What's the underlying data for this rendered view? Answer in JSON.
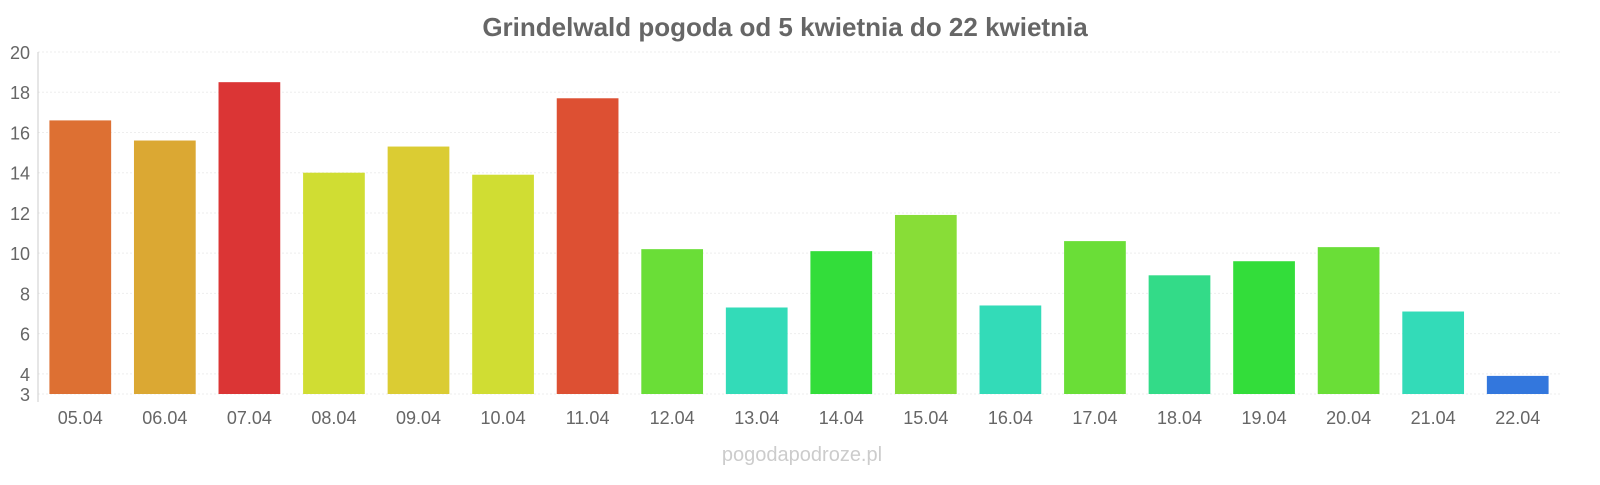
{
  "chart_data": {
    "type": "bar",
    "title": "Grindelwald pogoda od 5 kwietnia do 22 kwietnia",
    "xlabel": "",
    "ylabel": "",
    "ylim": [
      3,
      20
    ],
    "yticks": [
      3,
      4,
      6,
      8,
      10,
      12,
      14,
      16,
      18,
      20
    ],
    "grid": true,
    "categories": [
      "05.04",
      "06.04",
      "07.04",
      "08.04",
      "09.04",
      "10.04",
      "11.04",
      "12.04",
      "13.04",
      "14.04",
      "15.04",
      "16.04",
      "17.04",
      "18.04",
      "19.04",
      "20.04",
      "21.04",
      "22.04"
    ],
    "values": [
      16.6,
      15.6,
      18.5,
      14.0,
      15.3,
      13.9,
      17.7,
      10.2,
      7.3,
      10.1,
      11.9,
      7.4,
      10.6,
      8.9,
      9.6,
      10.3,
      7.1,
      3.9
    ],
    "colors": [
      "#dd7033",
      "#dba833",
      "#db3535",
      "#d0dd33",
      "#dbcc33",
      "#d0dd33",
      "#dd5033",
      "#6ade37",
      "#33dbb8",
      "#33dd3a",
      "#88dd37",
      "#33dbb8",
      "#6ade37",
      "#33db88",
      "#33dd3a",
      "#6ade37",
      "#33dbb8",
      "#3377dd"
    ]
  },
  "watermark": "pogodapodroze.pl"
}
